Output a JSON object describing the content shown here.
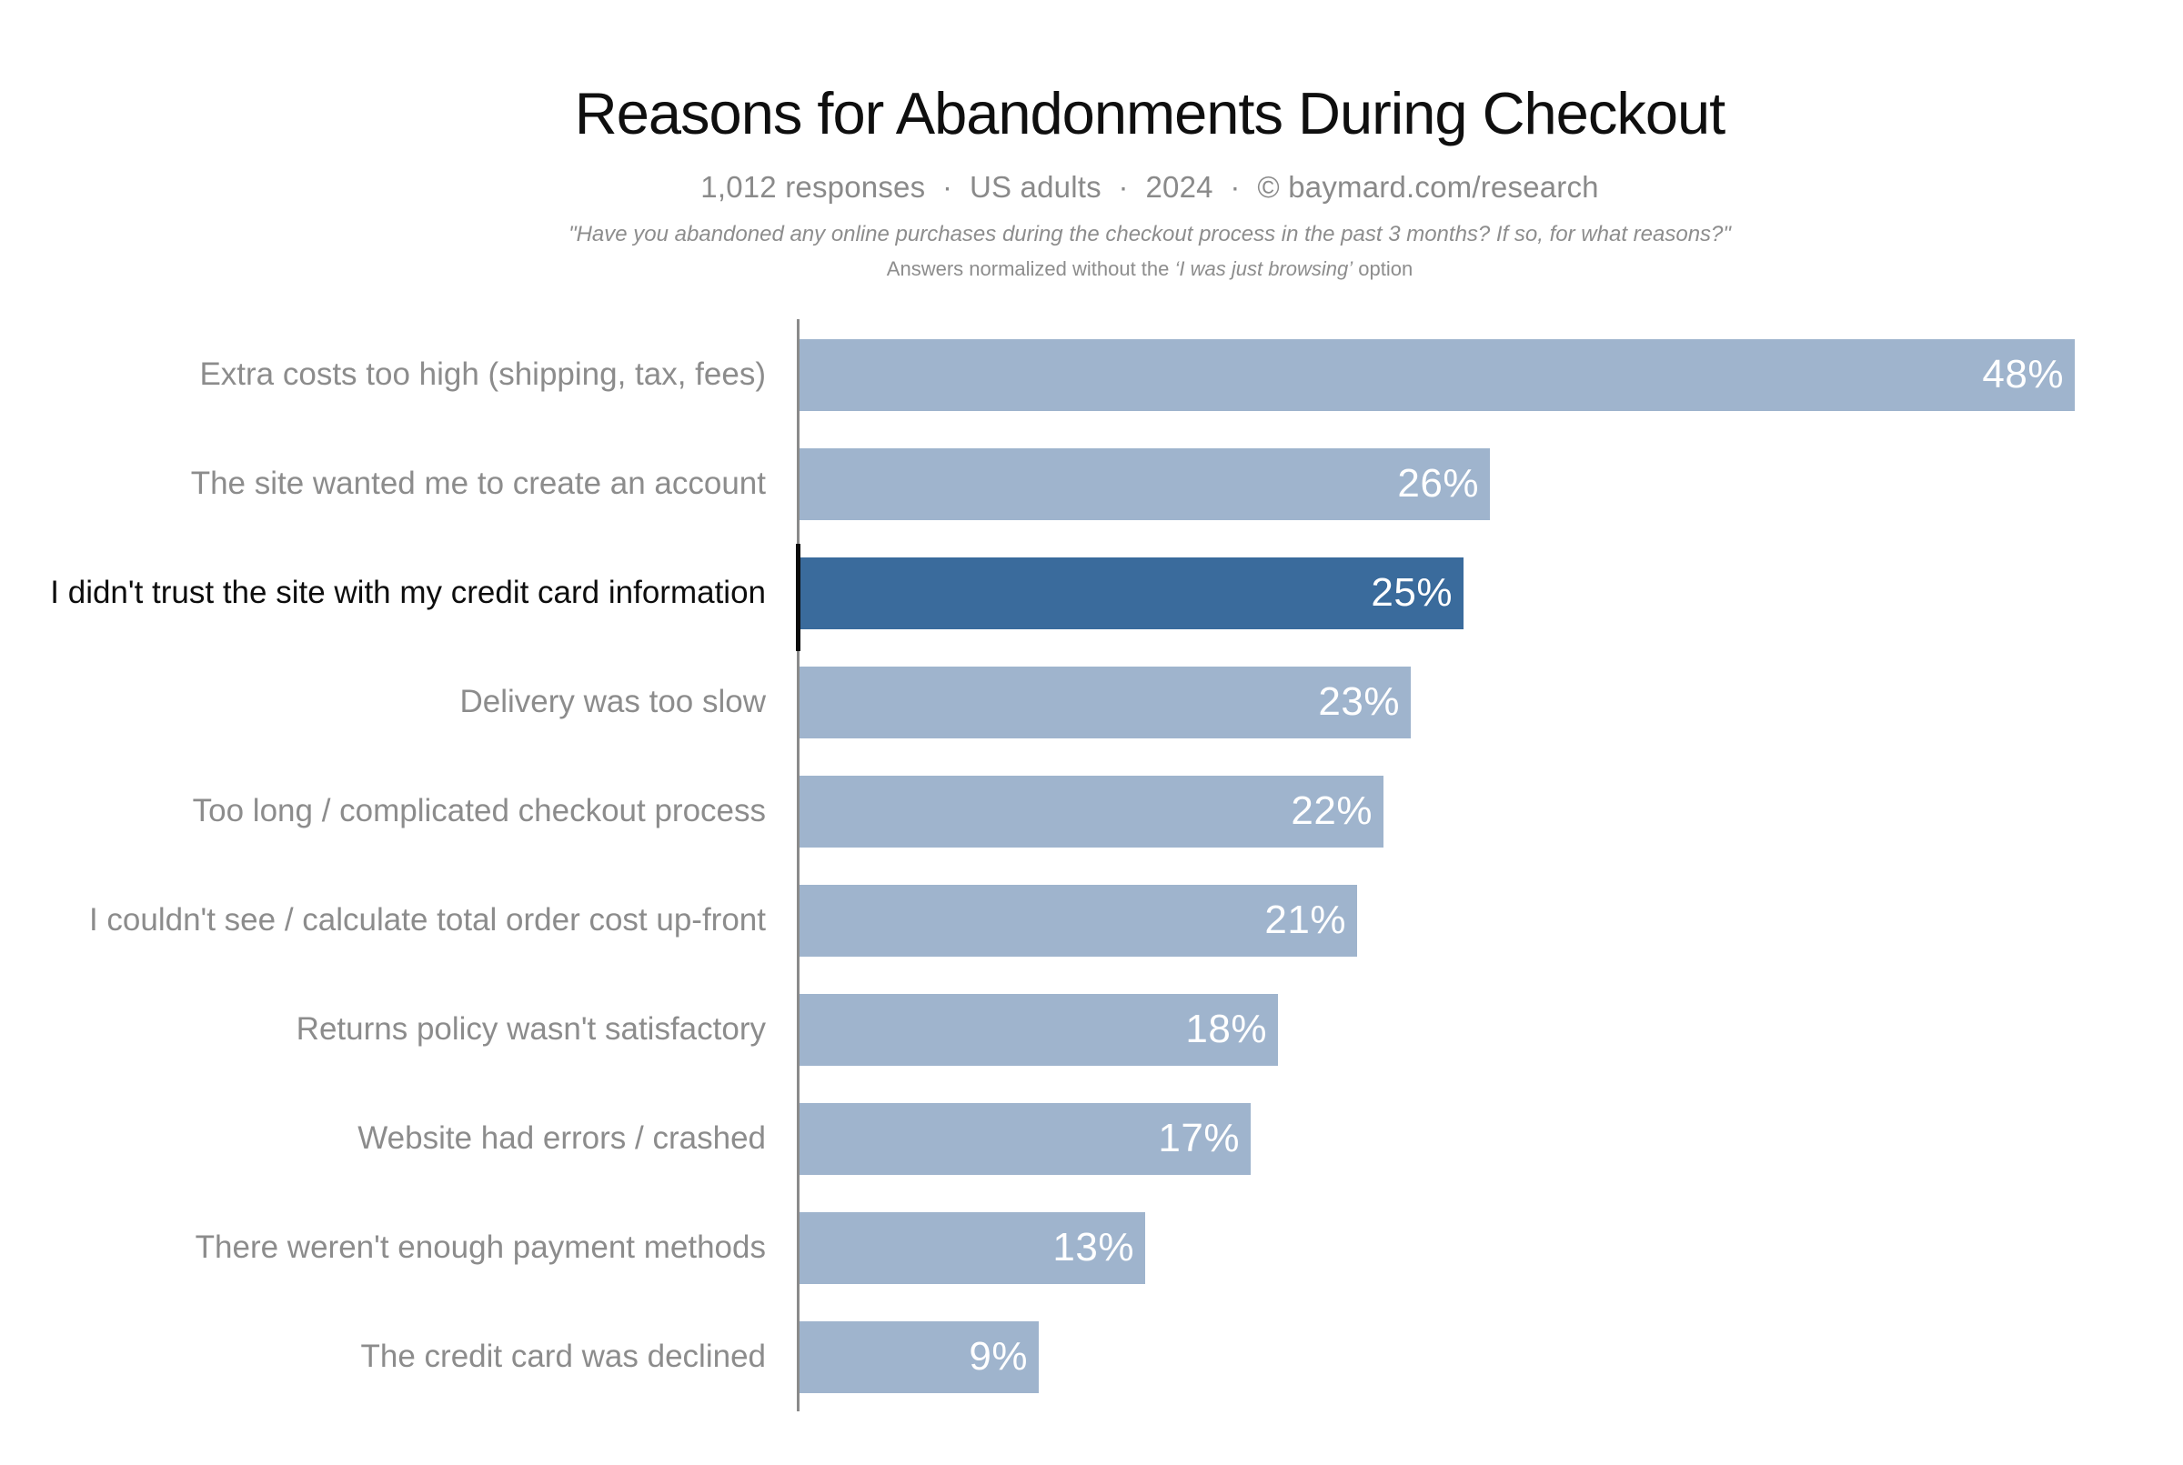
{
  "header": {
    "title": "Reasons for Abandonments During Checkout",
    "subtitle": "1,012 responses  ·  US adults  ·  2024  ·  © baymard.com/research",
    "quote_line1": "\"Have you abandoned any online purchases during the checkout process in the past 3 months? If so, for what reasons?\"",
    "quote_line2_prefix": "Answers normalized without the ",
    "quote_line2_italic": "‘I was just browsing’",
    "quote_line2_suffix": " option"
  },
  "chart_data": {
    "type": "bar",
    "orientation": "horizontal",
    "title": "Reasons for Abandonments During Checkout",
    "xlabel": "",
    "ylabel": "",
    "xlim": [
      0,
      48
    ],
    "grid": false,
    "legend": false,
    "categories": [
      "Extra costs too high (shipping, tax, fees)",
      "The site wanted me to create an account",
      "I didn't trust the site with my credit card information",
      "Delivery was too slow",
      "Too long / complicated checkout process",
      "I couldn't see / calculate total order cost up-front",
      "Returns policy wasn't satisfactory",
      "Website had errors / crashed",
      "There weren't enough payment methods",
      "The credit card was declined"
    ],
    "values": [
      48,
      26,
      25,
      23,
      22,
      21,
      18,
      17,
      13,
      9
    ],
    "value_labels": [
      "48%",
      "26%",
      "25%",
      "23%",
      "22%",
      "21%",
      "18%",
      "17%",
      "13%",
      "9%"
    ],
    "highlighted_index": 2,
    "colors": {
      "bar": "#9fb4cd",
      "bar_highlight": "#3a6b9c",
      "category_label": "#8c8c8c",
      "category_label_highlight": "#0d0d0d",
      "value_text": "#ffffff",
      "axis": "#8a8a8a",
      "axis_highlight": "#0b0b0b",
      "background": "#ffffff"
    }
  }
}
